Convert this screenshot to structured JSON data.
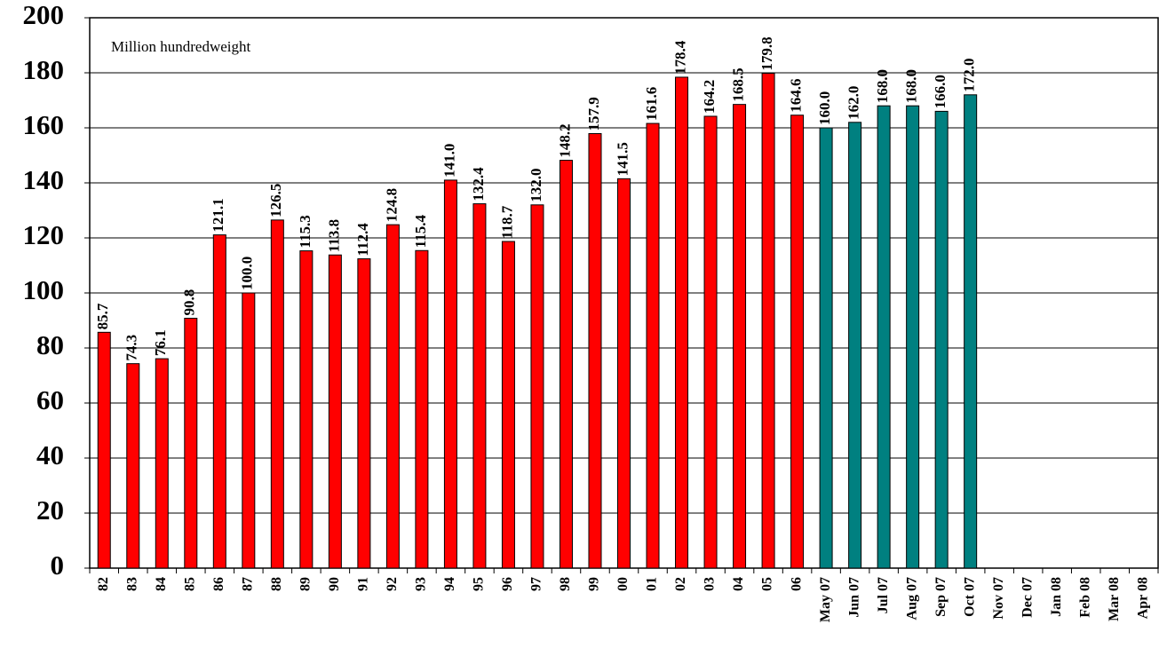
{
  "chart_data": {
    "type": "bar",
    "annotation": "Million hundredweight",
    "categories": [
      "82",
      "83",
      "84",
      "85",
      "86",
      "87",
      "88",
      "89",
      "90",
      "91",
      "92",
      "93",
      "94",
      "95",
      "96",
      "97",
      "98",
      "99",
      "00",
      "01",
      "02",
      "03",
      "04",
      "05",
      "06",
      "May 07",
      "Jun 07",
      "Jul 07",
      "Aug 07",
      "Sep 07",
      "Oct 07",
      "Nov 07",
      "Dec 07",
      "Jan 08",
      "Feb 08",
      "Mar 08",
      "Apr 08"
    ],
    "values": [
      85.7,
      74.3,
      76.1,
      90.8,
      121.1,
      100.0,
      126.5,
      115.3,
      113.8,
      112.4,
      124.8,
      115.4,
      141.0,
      132.4,
      118.7,
      132.0,
      148.2,
      157.9,
      141.5,
      161.6,
      178.4,
      164.2,
      168.5,
      179.8,
      164.6,
      160.0,
      162.0,
      168.0,
      168.0,
      166.0,
      172.0,
      null,
      null,
      null,
      null,
      null,
      null
    ],
    "value_labels": [
      "85.7",
      "74.3",
      "76.1",
      "90.8",
      "121.1",
      "100.0",
      "126.5",
      "115.3",
      "113.8",
      "112.4",
      "124.8",
      "115.4",
      "141.0",
      "132.4",
      "118.7",
      "132.0",
      "148.2",
      "157.9",
      "141.5",
      "161.6",
      "178.4",
      "164.2",
      "168.5",
      "179.8",
      "164.6",
      "160.0",
      "162.0",
      "168.0",
      "168.0",
      "166.0",
      "172.0",
      null,
      null,
      null,
      null,
      null,
      null
    ],
    "colors": [
      "#ff0000",
      "#ff0000",
      "#ff0000",
      "#ff0000",
      "#ff0000",
      "#ff0000",
      "#ff0000",
      "#ff0000",
      "#ff0000",
      "#ff0000",
      "#ff0000",
      "#ff0000",
      "#ff0000",
      "#ff0000",
      "#ff0000",
      "#ff0000",
      "#ff0000",
      "#ff0000",
      "#ff0000",
      "#ff0000",
      "#ff0000",
      "#ff0000",
      "#ff0000",
      "#ff0000",
      "#ff0000",
      "#008080",
      "#008080",
      "#008080",
      "#008080",
      "#008080",
      "#008080",
      null,
      null,
      null,
      null,
      null,
      null
    ],
    "ylim": [
      0,
      200
    ],
    "yticks": [
      0,
      20,
      40,
      60,
      80,
      100,
      120,
      140,
      160,
      180,
      200
    ],
    "grid": true
  }
}
